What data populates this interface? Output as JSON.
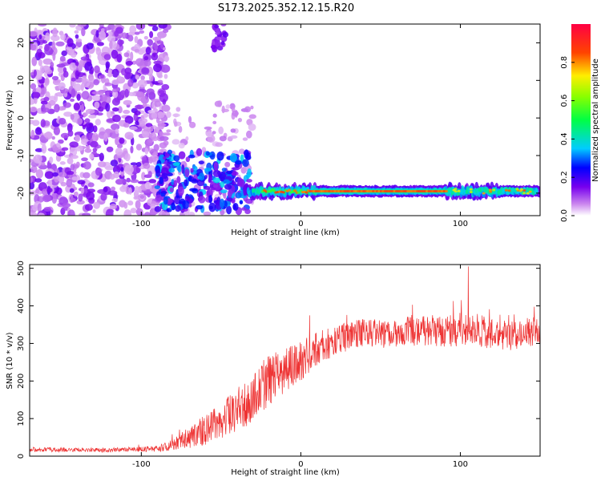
{
  "page_title": "S173.2025.352.12.15.R20",
  "chart_data": [
    {
      "type": "heatmap",
      "title": "S173.2025.352.12.15.R20",
      "xlabel": "Height of straight line (km)",
      "ylabel": "Frequency (Hz)",
      "xlim": [
        -170,
        150
      ],
      "ylim": [
        -26,
        25
      ],
      "x_ticks": [
        -100,
        0,
        100
      ],
      "y_ticks": [
        -20,
        -10,
        0,
        10,
        20
      ],
      "colorbar": {
        "label": "Normalized spectral amplitude",
        "range": [
          0,
          1
        ],
        "ticks": [
          0.0,
          0.2,
          0.4,
          0.6,
          0.8
        ]
      },
      "ridge_frequency_hz": -19.5,
      "regions": [
        {
          "name": "broadband-noise",
          "x_from": -170,
          "x_to": -85,
          "amplitude": "low-moderate"
        },
        {
          "name": "transition-cluster",
          "x_from": -90,
          "x_to": -35,
          "amplitude": "moderate-high"
        },
        {
          "name": "narrowband-ridge",
          "x_from": -35,
          "x_to": 150,
          "amplitude": "high"
        }
      ]
    },
    {
      "type": "line",
      "xlabel": "Height of straight line (km)",
      "ylabel": "SNR (10 * v/v)",
      "xlim": [
        -170,
        150
      ],
      "ylim": [
        0,
        510
      ],
      "x_ticks": [
        -100,
        0,
        100
      ],
      "y_ticks": [
        0,
        100,
        200,
        300,
        400,
        500
      ],
      "series": [
        {
          "name": "SNR",
          "color": "#ee3333",
          "x": [
            -170,
            -150,
            -130,
            -110,
            -90,
            -80,
            -70,
            -60,
            -50,
            -40,
            -30,
            -20,
            -10,
            0,
            10,
            20,
            30,
            40,
            50,
            60,
            70,
            80,
            90,
            100,
            105,
            110,
            120,
            130,
            140,
            150
          ],
          "values": [
            18,
            17,
            16,
            17,
            20,
            30,
            50,
            70,
            95,
            120,
            160,
            200,
            230,
            255,
            285,
            305,
            320,
            330,
            325,
            330,
            332,
            335,
            330,
            338,
            345,
            335,
            325,
            320,
            328,
            335
          ],
          "noise_amplitude": [
            6,
            6,
            6,
            6,
            8,
            15,
            30,
            40,
            50,
            60,
            70,
            70,
            60,
            55,
            45,
            40,
            38,
            38,
            38,
            38,
            40,
            40,
            40,
            45,
            50,
            45,
            40,
            40,
            40,
            40
          ],
          "peak": {
            "x": 105,
            "y": 505
          }
        }
      ]
    }
  ]
}
